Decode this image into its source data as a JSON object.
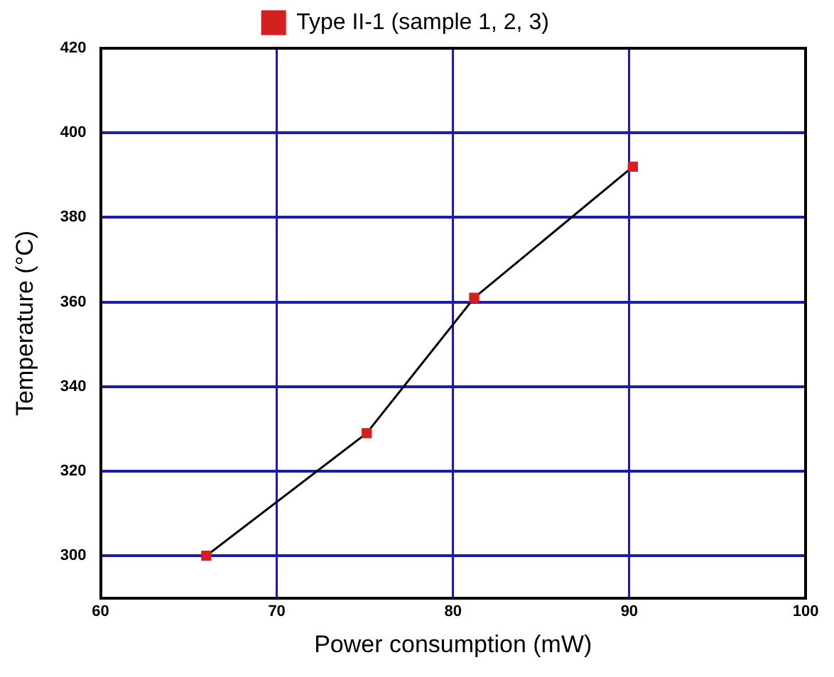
{
  "chart_data": {
    "type": "line",
    "xlabel": "Power consumption (mW)",
    "ylabel": "Temperature (°C)",
    "x": [
      66,
      75.1,
      81.2,
      90.2
    ],
    "series": [
      {
        "name": "Type II-1 (sample 1, 2, 3)",
        "color": "#d42020",
        "values": [
          300,
          329,
          361,
          392
        ]
      }
    ],
    "xlim": [
      60,
      100
    ],
    "xticks": [
      60,
      70,
      80,
      90,
      100
    ],
    "ylim": [
      290,
      420
    ],
    "yticks": [
      300,
      320,
      340,
      360,
      380,
      400,
      420
    ],
    "grid": true,
    "legend": "top",
    "marker": "square",
    "line_style": "solid"
  }
}
